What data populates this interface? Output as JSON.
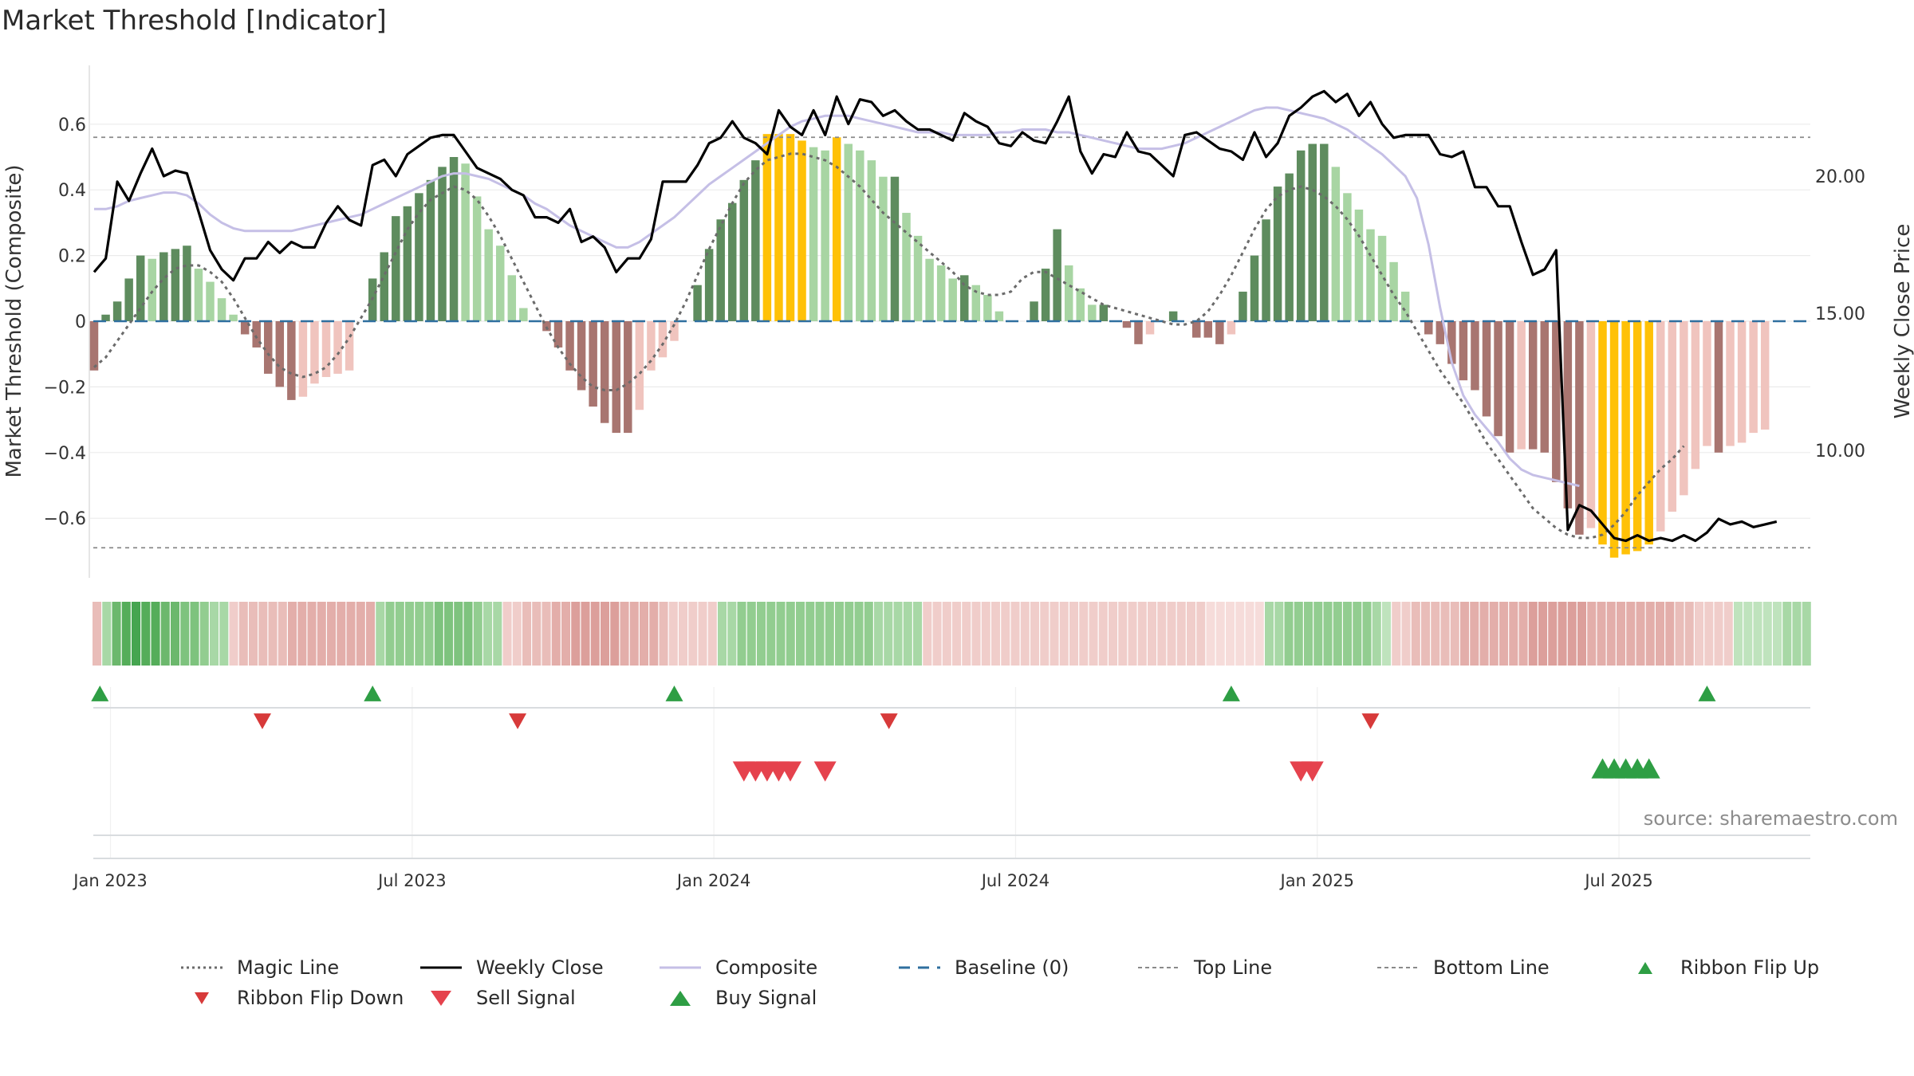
{
  "title": "Market Threshold [Indicator]",
  "source": "source: sharemaestro.com",
  "colors": {
    "pos_dark": "#5e8c5e",
    "pos_light": "#a8d5a3",
    "neg_dark": "#a87570",
    "neg_light": "#f0c4be",
    "extreme": "#ffc107",
    "close": "#000000",
    "composite": "#c5bfe6",
    "magic": "#6b6b6b",
    "baseline": "#2f6f9f",
    "buy": "#2e9e44",
    "sell": "#d73a3a"
  },
  "chart_data": {
    "type": "bar",
    "title": "Market Threshold [Indicator]",
    "ylabel": "Market Threshold (Composite)",
    "y2label": "Weekly Close Price",
    "ylim": [
      -0.78,
      0.78
    ],
    "y2lim": [
      5.2,
      23.9
    ],
    "yticks": [
      "0.6",
      "0.4",
      "0.2",
      "0",
      "−0.2",
      "−0.4",
      "−0.6"
    ],
    "ytick_values": [
      0.6,
      0.4,
      0.2,
      0,
      -0.2,
      -0.4,
      -0.6
    ],
    "y2ticks": [
      "20.00",
      "15.00",
      "10.00"
    ],
    "y2tick_values": [
      20,
      15,
      10
    ],
    "top_line": 0.56,
    "bottom_line": -0.69,
    "x_start": "2022-12-26",
    "x_step_weeks": 1,
    "x_ticks": [
      {
        "label": "Jan 2023",
        "week": 1
      },
      {
        "label": "Jul 2023",
        "week": 27
      },
      {
        "label": "Jan 2024",
        "week": 53
      },
      {
        "label": "Jul 2024",
        "week": 79
      },
      {
        "label": "Jan 2025",
        "week": 105
      },
      {
        "label": "Jul 2025",
        "week": 131
      }
    ],
    "series": [
      {
        "name": "Threshold bars (composite)",
        "values": [
          -0.15,
          0.02,
          0.06,
          0.13,
          0.2,
          0.19,
          0.21,
          0.22,
          0.23,
          0.16,
          0.12,
          0.07,
          0.02,
          -0.04,
          -0.08,
          -0.16,
          -0.2,
          -0.24,
          -0.23,
          -0.19,
          -0.17,
          -0.16,
          -0.15,
          0.0,
          0.13,
          0.21,
          0.32,
          0.35,
          0.39,
          0.43,
          0.47,
          0.5,
          0.48,
          0.38,
          0.28,
          0.23,
          0.14,
          0.04,
          0.0,
          -0.03,
          -0.08,
          -0.15,
          -0.21,
          -0.26,
          -0.31,
          -0.34,
          -0.34,
          -0.27,
          -0.15,
          -0.11,
          -0.06,
          0.0,
          0.11,
          0.22,
          0.31,
          0.36,
          0.43,
          0.49,
          0.57,
          0.57,
          0.57,
          0.55,
          0.53,
          0.52,
          0.56,
          0.54,
          0.52,
          0.49,
          0.44,
          0.44,
          0.33,
          0.26,
          0.19,
          0.17,
          0.13,
          0.14,
          0.11,
          0.08,
          0.03,
          0.0,
          0.0,
          0.06,
          0.16,
          0.28,
          0.17,
          0.1,
          0.05,
          0.05,
          0.0,
          -0.02,
          -0.07,
          -0.04,
          0.0,
          0.03,
          0.0,
          -0.05,
          -0.05,
          -0.07,
          -0.04,
          0.09,
          0.2,
          0.31,
          0.41,
          0.45,
          0.52,
          0.54,
          0.54,
          0.47,
          0.39,
          0.34,
          0.28,
          0.26,
          0.18,
          0.09,
          0.0,
          -0.04,
          -0.07,
          -0.13,
          -0.18,
          -0.21,
          -0.29,
          -0.35,
          -0.4,
          -0.39,
          -0.39,
          -0.4,
          -0.49,
          -0.57,
          -0.65,
          -0.63,
          -0.68,
          -0.72,
          -0.71,
          -0.7,
          -0.68,
          -0.64,
          -0.58,
          -0.53,
          -0.45,
          -0.38,
          -0.4,
          -0.38,
          -0.37,
          -0.34,
          -0.33
        ]
      },
      {
        "name": "Magic Line",
        "values": [
          -0.14,
          -0.11,
          -0.06,
          -0.01,
          0.04,
          0.09,
          0.13,
          0.16,
          0.17,
          0.17,
          0.15,
          0.12,
          0.07,
          0.01,
          -0.05,
          -0.1,
          -0.14,
          -0.16,
          -0.17,
          -0.16,
          -0.14,
          -0.1,
          -0.05,
          0.01,
          0.07,
          0.14,
          0.21,
          0.28,
          0.33,
          0.37,
          0.39,
          0.41,
          0.4,
          0.37,
          0.32,
          0.26,
          0.19,
          0.12,
          0.05,
          -0.02,
          -0.08,
          -0.13,
          -0.17,
          -0.2,
          -0.21,
          -0.21,
          -0.19,
          -0.16,
          -0.12,
          -0.07,
          -0.01,
          0.06,
          0.14,
          0.22,
          0.29,
          0.36,
          0.42,
          0.46,
          0.49,
          0.5,
          0.51,
          0.51,
          0.5,
          0.49,
          0.47,
          0.44,
          0.41,
          0.37,
          0.33,
          0.3,
          0.27,
          0.24,
          0.21,
          0.18,
          0.15,
          0.11,
          0.09,
          0.08,
          0.08,
          0.09,
          0.13,
          0.15,
          0.15,
          0.13,
          0.11,
          0.09,
          0.07,
          0.05,
          0.04,
          0.03,
          0.02,
          0.01,
          0.0,
          -0.01,
          -0.01,
          0.0,
          0.03,
          0.08,
          0.14,
          0.21,
          0.28,
          0.34,
          0.38,
          0.4,
          0.41,
          0.4,
          0.38,
          0.35,
          0.31,
          0.26,
          0.2,
          0.14,
          0.08,
          0.03,
          -0.03,
          -0.09,
          -0.15,
          -0.2,
          -0.25,
          -0.31,
          -0.37,
          -0.42,
          -0.47,
          -0.52,
          -0.57,
          -0.6,
          -0.63,
          -0.65,
          -0.66,
          -0.66,
          -0.65,
          -0.62,
          -0.58,
          -0.53,
          -0.49,
          -0.45,
          -0.42,
          -0.38
        ]
      },
      {
        "name": "Weekly Close",
        "values": [
          16.5,
          17.0,
          19.8,
          19.1,
          20.1,
          21.0,
          20.0,
          20.2,
          20.1,
          18.7,
          17.3,
          16.6,
          16.2,
          17.0,
          17.0,
          17.6,
          17.2,
          17.6,
          17.4,
          17.4,
          18.3,
          18.9,
          18.4,
          18.2,
          20.4,
          20.6,
          20.0,
          20.8,
          21.1,
          21.4,
          21.5,
          21.5,
          20.9,
          20.3,
          20.1,
          19.9,
          19.5,
          19.3,
          18.5,
          18.5,
          18.3,
          18.8,
          17.6,
          17.8,
          17.4,
          16.5,
          17.0,
          17.0,
          17.7,
          19.8,
          19.8,
          19.8,
          20.4,
          21.2,
          21.4,
          22.0,
          21.4,
          21.2,
          20.8,
          22.4,
          21.8,
          21.5,
          22.4,
          21.5,
          22.9,
          21.9,
          22.8,
          22.7,
          22.2,
          22.4,
          22.0,
          21.7,
          21.7,
          21.5,
          21.3,
          22.3,
          22.0,
          21.8,
          21.2,
          21.1,
          21.6,
          21.3,
          21.2,
          22.0,
          22.9,
          20.9,
          20.1,
          20.8,
          20.7,
          21.6,
          20.9,
          20.8,
          20.4,
          20.0,
          21.5,
          21.6,
          21.3,
          21.0,
          20.9,
          20.6,
          21.6,
          20.7,
          21.2,
          22.2,
          22.5,
          22.9,
          23.1,
          22.7,
          23.0,
          22.2,
          22.7,
          21.9,
          21.4,
          21.5,
          21.5,
          21.5,
          20.8,
          20.7,
          20.9,
          19.6,
          19.6,
          18.9,
          18.9,
          17.6,
          16.4,
          16.6,
          17.3,
          7.1,
          8.0,
          7.8,
          7.3,
          6.8,
          6.7,
          6.9,
          6.7,
          6.8,
          6.7,
          6.9,
          6.7,
          7.0,
          7.5,
          7.3,
          7.4,
          7.2,
          7.3,
          7.4
        ]
      },
      {
        "name": "Composite",
        "values": [
          18.8,
          18.8,
          18.9,
          19.1,
          19.2,
          19.3,
          19.4,
          19.4,
          19.3,
          19.0,
          18.6,
          18.3,
          18.1,
          18.0,
          18.0,
          18.0,
          18.0,
          18.0,
          18.1,
          18.2,
          18.3,
          18.4,
          18.5,
          18.6,
          18.8,
          19.0,
          19.2,
          19.4,
          19.6,
          19.8,
          20.0,
          20.1,
          20.1,
          20.0,
          19.9,
          19.7,
          19.5,
          19.3,
          19.0,
          18.8,
          18.5,
          18.2,
          18.0,
          17.8,
          17.6,
          17.4,
          17.4,
          17.6,
          17.9,
          18.2,
          18.5,
          18.9,
          19.3,
          19.7,
          20.0,
          20.3,
          20.6,
          20.9,
          21.2,
          21.5,
          21.8,
          22.0,
          22.1,
          22.2,
          22.2,
          22.2,
          22.1,
          22.0,
          21.9,
          21.8,
          21.7,
          21.6,
          21.6,
          21.6,
          21.5,
          21.5,
          21.5,
          21.5,
          21.6,
          21.6,
          21.7,
          21.7,
          21.7,
          21.6,
          21.6,
          21.5,
          21.4,
          21.3,
          21.2,
          21.1,
          21.0,
          21.0,
          21.0,
          21.1,
          21.2,
          21.4,
          21.6,
          21.8,
          22.0,
          22.2,
          22.4,
          22.5,
          22.5,
          22.4,
          22.3,
          22.2,
          22.1,
          21.9,
          21.7,
          21.4,
          21.1,
          20.8,
          20.4,
          20.0,
          19.2,
          17.5,
          15.2,
          13.2,
          12.0,
          11.3,
          10.8,
          10.3,
          9.7,
          9.3,
          9.1,
          9.0,
          8.9,
          8.8,
          8.7
        ]
      }
    ],
    "top_line_values_note": "dashed horizontal lines",
    "ribbon": [
      -3,
      3,
      6,
      7,
      8,
      7,
      7,
      6,
      6,
      5,
      5,
      4,
      3,
      3,
      -2,
      -3,
      -3,
      -3,
      -3,
      -3,
      -4,
      -4,
      -4,
      -4,
      -4,
      -4,
      -4,
      -4,
      -4,
      3,
      4,
      4,
      4,
      4,
      4,
      5,
      5,
      5,
      5,
      4,
      3,
      3,
      -2,
      -2,
      -3,
      -3,
      -3,
      -4,
      -4,
      -5,
      -5,
      -5,
      -5,
      -5,
      -4,
      -4,
      -4,
      -4,
      -3,
      -2,
      -2,
      -2,
      -2,
      -2,
      3,
      3,
      4,
      4,
      4,
      4,
      4,
      4,
      4,
      4,
      4,
      4,
      4,
      4,
      4,
      4,
      3,
      3,
      3,
      3,
      3,
      -2,
      -2,
      -2,
      -2,
      -2,
      -2,
      -2,
      -2,
      -2,
      -2,
      -2,
      -2,
      -2,
      -2,
      -2,
      -2,
      -2,
      -2,
      -2,
      -2,
      -2,
      -2,
      -2,
      -2,
      -2,
      -2,
      -2,
      -2,
      -2,
      -1,
      -1,
      -1,
      -1,
      -1,
      -1,
      3,
      3,
      4,
      4,
      4,
      4,
      4,
      4,
      4,
      4,
      4,
      3,
      2,
      -2,
      -2,
      -3,
      -3,
      -3,
      -3,
      -3,
      -4,
      -4,
      -4,
      -4,
      -4,
      -4,
      -4,
      -5,
      -5,
      -5,
      -5,
      -5,
      -5,
      -4,
      -4,
      -4,
      -4,
      -4,
      -4,
      -4,
      -4,
      -4,
      -3,
      -3,
      -2,
      -2,
      -2,
      -2,
      2,
      2,
      2,
      2,
      2,
      3,
      3,
      3
    ],
    "ribbon_flip_up_weeks": [
      0.5,
      24,
      50,
      98,
      139
    ],
    "ribbon_flip_down_weeks": [
      14.5,
      36.5,
      68.5,
      110
    ],
    "sell_signal_weeks": [
      56,
      57,
      58,
      59,
      60,
      63,
      104,
      105
    ],
    "buy_signal_weeks": [
      130,
      131,
      132,
      133,
      134
    ]
  },
  "legend": [
    {
      "label": "Magic Line",
      "kind": "dotted",
      "color": "#6b6b6b"
    },
    {
      "label": "Weekly Close",
      "kind": "solid",
      "color": "#000000"
    },
    {
      "label": "Composite",
      "kind": "solid-light",
      "color": "#c5bfe6"
    },
    {
      "label": "Baseline (0)",
      "kind": "dashed",
      "color": "#2f6f9f"
    },
    {
      "label": "Top Line",
      "kind": "dotted-thin",
      "color": "#8a8a8a"
    },
    {
      "label": "Bottom Line",
      "kind": "dotted-thin",
      "color": "#8a8a8a"
    },
    {
      "label": "Ribbon Flip Up",
      "kind": "tri-up-small",
      "color": "#2e9e44"
    },
    {
      "label": "Ribbon Flip Down",
      "kind": "tri-down-small",
      "color": "#d73a3a"
    },
    {
      "label": "Sell Signal",
      "kind": "tri-down",
      "color": "#e5424d"
    },
    {
      "label": "Buy Signal",
      "kind": "tri-up",
      "color": "#2e9e44"
    }
  ]
}
